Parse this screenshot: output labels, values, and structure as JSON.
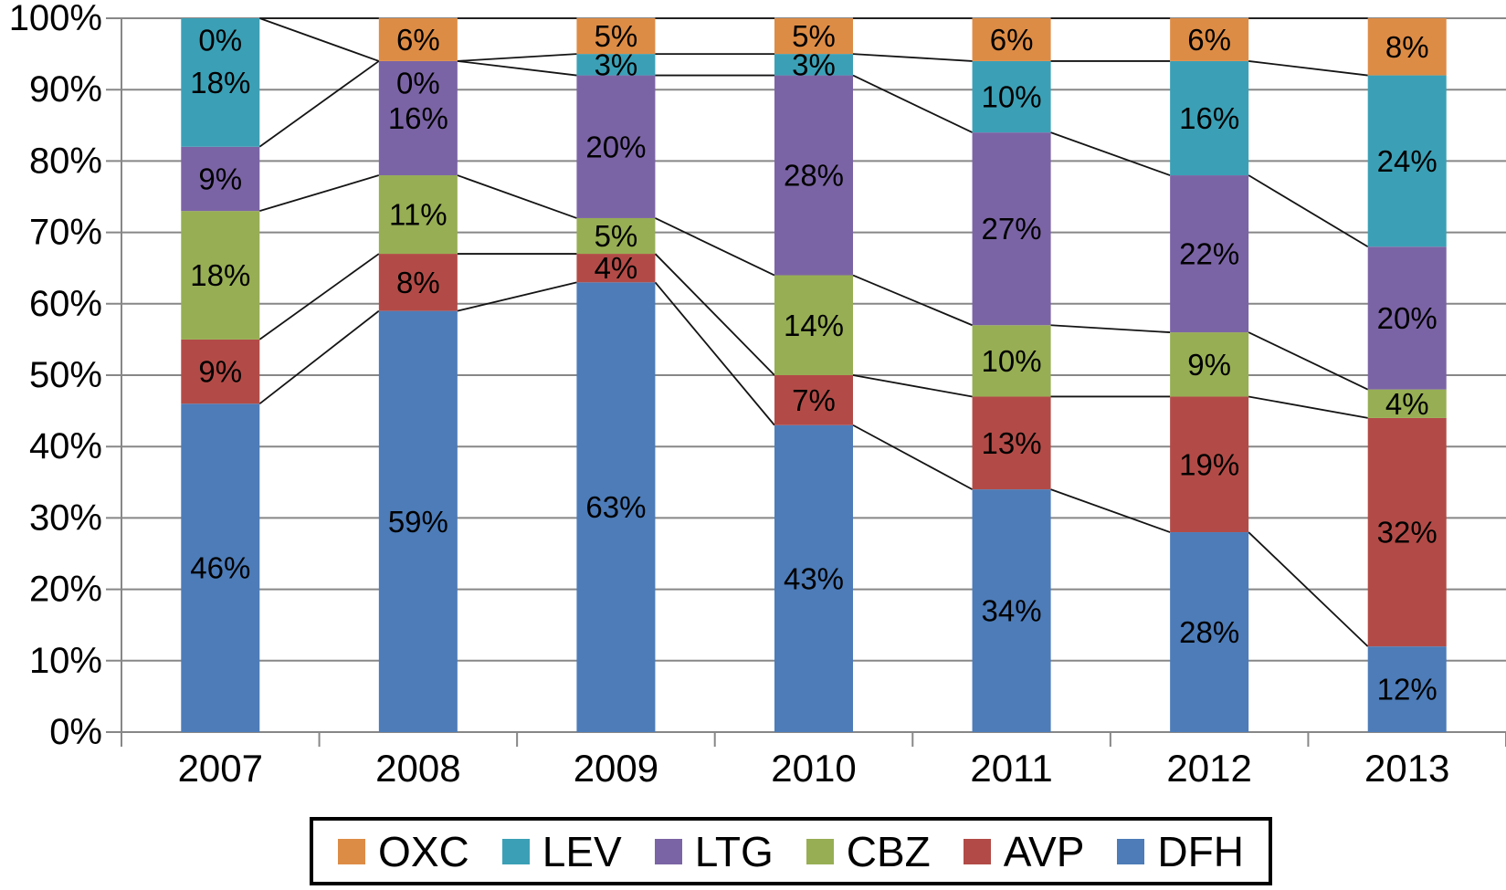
{
  "chart_data": {
    "type": "bar",
    "subtype": "stacked-100-percent-column",
    "title": "",
    "xlabel": "",
    "ylabel": "",
    "categories": [
      "2007",
      "2008",
      "2009",
      "2010",
      "2011",
      "2012",
      "2013"
    ],
    "series": [
      {
        "name": "DFH",
        "color": "#4D7CB8",
        "values": [
          46,
          59,
          63,
          43,
          34,
          28,
          12
        ]
      },
      {
        "name": "AVP",
        "color": "#B24B47",
        "values": [
          9,
          8,
          4,
          7,
          13,
          19,
          32
        ]
      },
      {
        "name": "CBZ",
        "color": "#97AE54",
        "values": [
          18,
          11,
          5,
          14,
          10,
          9,
          4
        ]
      },
      {
        "name": "LTG",
        "color": "#7B64A5",
        "values": [
          9,
          16,
          20,
          28,
          27,
          22,
          20
        ]
      },
      {
        "name": "LEV",
        "color": "#3BA0B6",
        "values": [
          18,
          0,
          3,
          3,
          10,
          16,
          24
        ]
      },
      {
        "name": "OXC",
        "color": "#DD8C46",
        "values": [
          0,
          6,
          5,
          5,
          6,
          6,
          8
        ]
      }
    ],
    "stacking_order_bottom_to_top": [
      "DFH",
      "AVP",
      "CBZ",
      "LTG",
      "LEV",
      "OXC"
    ],
    "data_label_suffix": "%",
    "ylim": [
      0,
      100
    ],
    "ytick_step": 10,
    "ytick_labels": [
      "0%",
      "10%",
      "20%",
      "30%",
      "40%",
      "50%",
      "60%",
      "70%",
      "80%",
      "90%",
      "100%"
    ],
    "grid": true,
    "series_lines": true,
    "legend": {
      "position": "bottom",
      "order": [
        "OXC",
        "LEV",
        "LTG",
        "CBZ",
        "AVP",
        "DFH"
      ]
    },
    "colors": {
      "gridline": "#878787",
      "axis": "#878787",
      "series_line": "#141414",
      "data_label": "#000000",
      "tick_label": "#000000",
      "background": "#FFFFFF",
      "legend_border": "#000000"
    }
  }
}
